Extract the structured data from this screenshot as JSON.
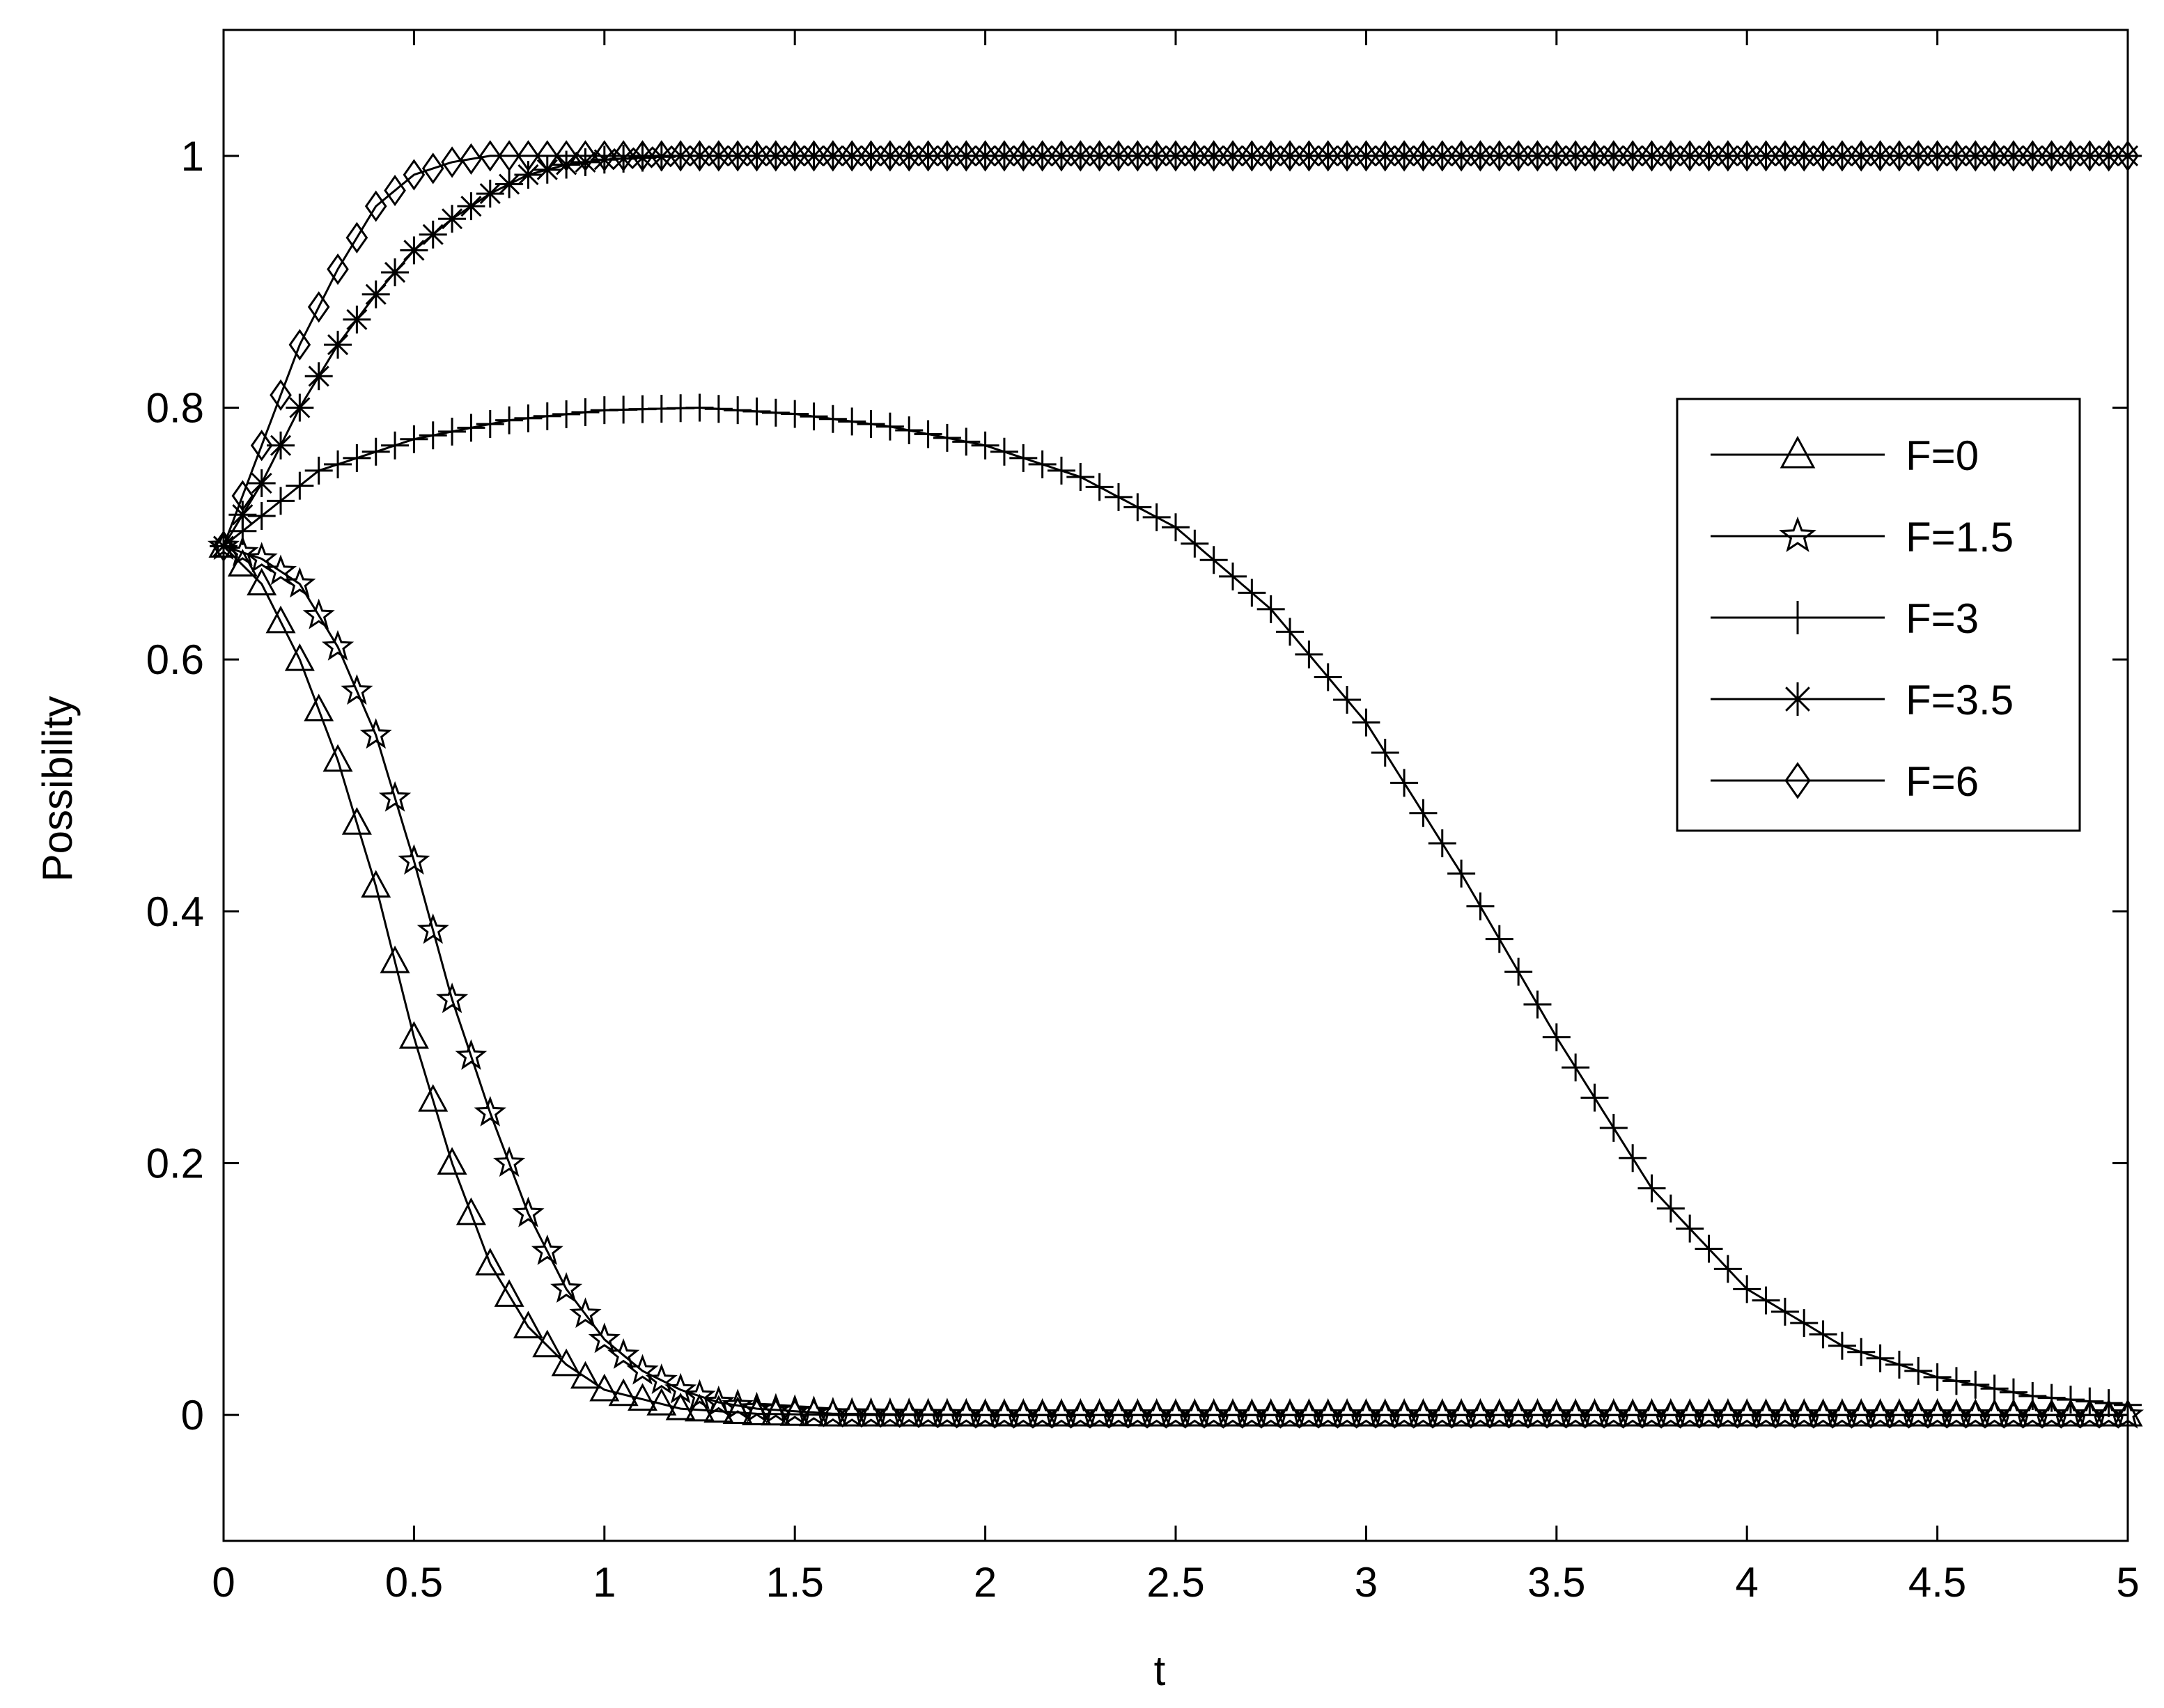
{
  "chart_data": {
    "type": "line",
    "xlabel": "t",
    "ylabel": "Possibility",
    "xlim": [
      0,
      5
    ],
    "ylim": [
      -0.1,
      1.1
    ],
    "xticks": [
      0,
      0.5,
      1,
      1.5,
      2,
      2.5,
      3,
      3.5,
      4,
      4.5,
      5
    ],
    "xtick_labels": [
      "0",
      "0.5",
      "1",
      "1.5",
      "2",
      "2.5",
      "3",
      "3.5",
      "4",
      "4.5",
      "5"
    ],
    "yticks": [
      0,
      0.2,
      0.4,
      0.6,
      0.8,
      1
    ],
    "ytick_labels": [
      "0",
      "0.2",
      "0.4",
      "0.6",
      "0.8",
      "1"
    ],
    "grid": false,
    "legend_position": "right",
    "colors": {
      "line": "#000000",
      "background": "#ffffff"
    },
    "series": [
      {
        "name": "F=0",
        "marker": "triangle",
        "x": [
          0,
          0.1,
          0.2,
          0.3,
          0.4,
          0.5,
          0.6,
          0.7,
          0.8,
          0.9,
          1.0,
          1.2,
          1.4,
          1.6,
          2.0,
          3.0,
          4.0,
          5.0
        ],
        "y": [
          0.69,
          0.66,
          0.6,
          0.52,
          0.42,
          0.3,
          0.2,
          0.12,
          0.07,
          0.04,
          0.02,
          0.005,
          0.001,
          0,
          0,
          0,
          0,
          0
        ]
      },
      {
        "name": "F=1.5",
        "marker": "star",
        "x": [
          0,
          0.1,
          0.2,
          0.3,
          0.4,
          0.5,
          0.6,
          0.7,
          0.8,
          0.9,
          1.0,
          1.1,
          1.2,
          1.3,
          1.4,
          1.6,
          2.0,
          3.0,
          4.0,
          5.0
        ],
        "y": [
          0.69,
          0.68,
          0.66,
          0.61,
          0.54,
          0.44,
          0.33,
          0.24,
          0.16,
          0.1,
          0.06,
          0.035,
          0.02,
          0.01,
          0.005,
          0.001,
          0,
          0,
          0,
          0
        ]
      },
      {
        "name": "F=3",
        "marker": "plus",
        "x": [
          0,
          0.25,
          0.5,
          0.75,
          1.0,
          1.25,
          1.5,
          1.75,
          2.0,
          2.25,
          2.5,
          2.75,
          3.0,
          3.25,
          3.5,
          3.75,
          4.0,
          4.25,
          4.5,
          4.75,
          5.0
        ],
        "y": [
          0.69,
          0.75,
          0.775,
          0.79,
          0.798,
          0.8,
          0.795,
          0.785,
          0.77,
          0.745,
          0.705,
          0.64,
          0.55,
          0.43,
          0.3,
          0.18,
          0.1,
          0.055,
          0.03,
          0.015,
          0.008
        ]
      },
      {
        "name": "F=3.5",
        "marker": "asterisk",
        "x": [
          0,
          0.1,
          0.2,
          0.3,
          0.4,
          0.5,
          0.6,
          0.7,
          0.8,
          0.9,
          1.0,
          1.2,
          1.5,
          2.0,
          3.0,
          4.0,
          5.0
        ],
        "y": [
          0.69,
          0.74,
          0.8,
          0.85,
          0.89,
          0.925,
          0.95,
          0.97,
          0.985,
          0.993,
          0.997,
          1,
          1,
          1,
          1,
          1,
          1
        ]
      },
      {
        "name": "F=6",
        "marker": "diamond",
        "x": [
          0,
          0.1,
          0.2,
          0.3,
          0.4,
          0.5,
          0.6,
          0.7,
          0.8,
          1.0,
          1.5,
          2.0,
          3.0,
          4.0,
          5.0
        ],
        "y": [
          0.69,
          0.77,
          0.85,
          0.91,
          0.96,
          0.985,
          0.995,
          1,
          1,
          1,
          1,
          1,
          1,
          1,
          1
        ]
      }
    ]
  }
}
